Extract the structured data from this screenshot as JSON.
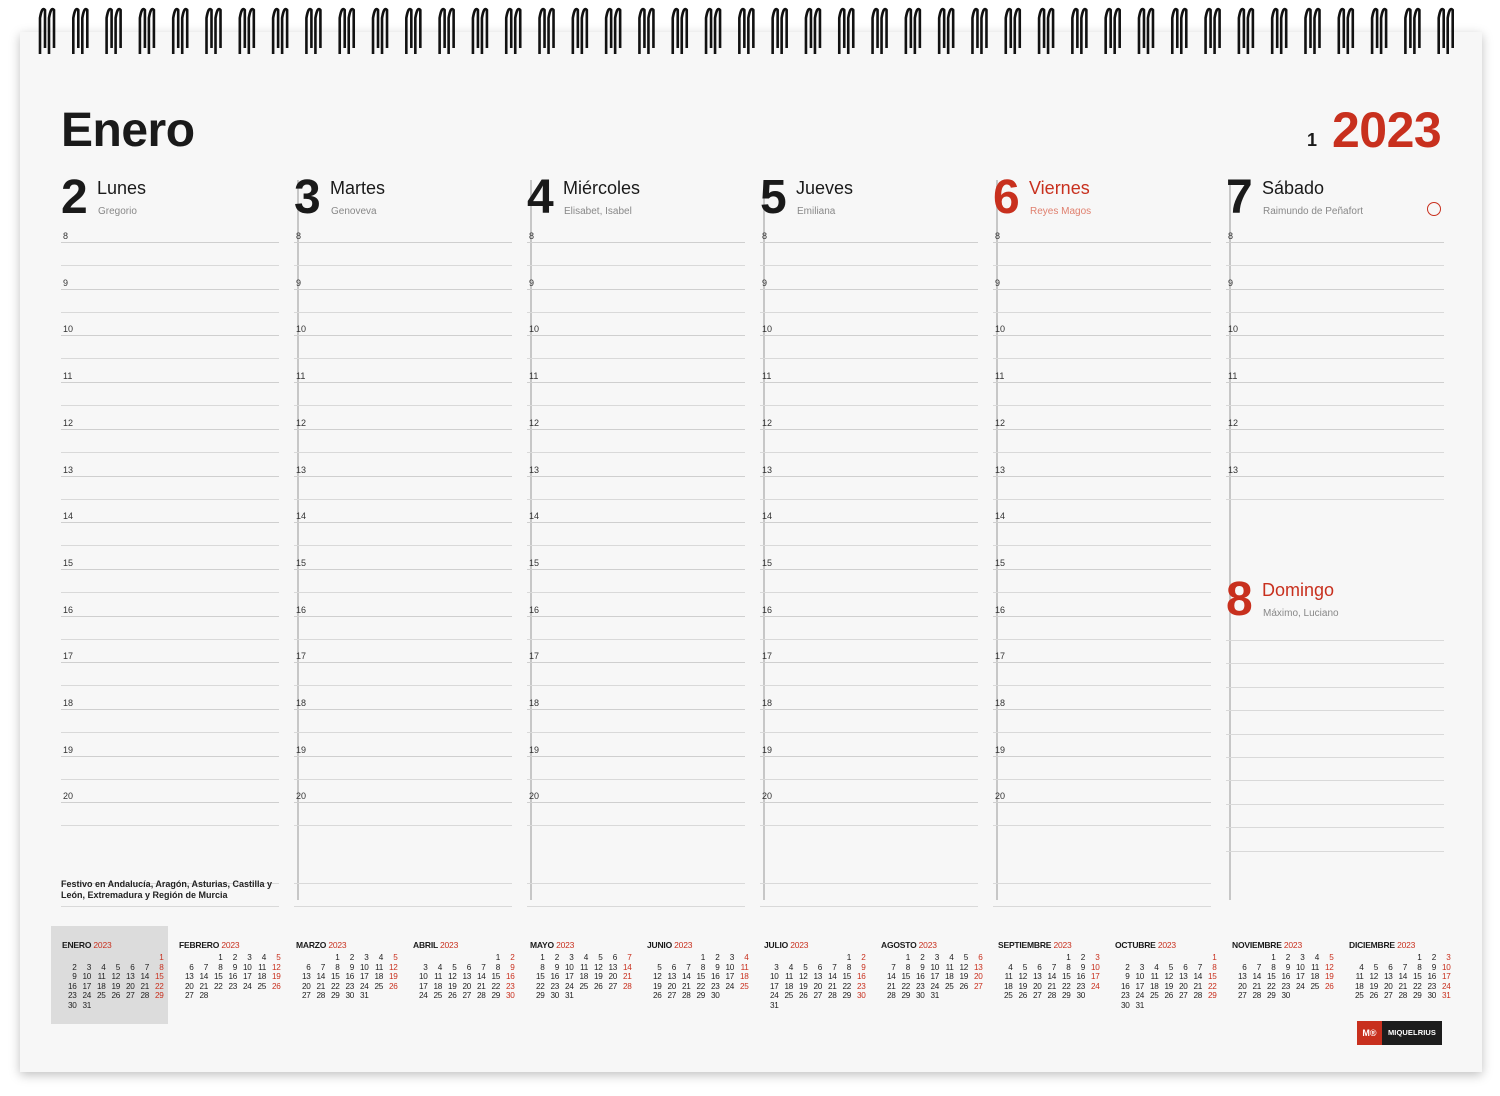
{
  "header": {
    "month": "Enero",
    "week": "1",
    "year": "2023"
  },
  "colors": {
    "accent": "#c8301e",
    "text": "#1a1a1a",
    "rule": "#d9d9d9"
  },
  "days": [
    {
      "num": "2",
      "name": "Lunes",
      "saint": "Gregorio",
      "red": false
    },
    {
      "num": "3",
      "name": "Martes",
      "saint": "Genoveva",
      "red": false
    },
    {
      "num": "4",
      "name": "Miércoles",
      "saint": "Elisabet, Isabel",
      "red": false
    },
    {
      "num": "5",
      "name": "Jueves",
      "saint": "Emiliana",
      "red": false
    },
    {
      "num": "6",
      "name": "Viernes",
      "saint": "Reyes Magos",
      "red": true
    },
    {
      "num": "7",
      "name": "Sábado",
      "saint": "Raimundo de Peñafort",
      "red": false
    },
    {
      "num": "8",
      "name": "Domingo",
      "saint": "Máximo, Luciano",
      "red": true
    }
  ],
  "hours": [
    "8",
    "9",
    "10",
    "11",
    "12",
    "13",
    "14",
    "15",
    "16",
    "17",
    "18",
    "19",
    "20"
  ],
  "holiday_note": "Festivo en Andalucía, Aragón, Asturias, Castilla y León, Extremadura y Región de Murcia",
  "mini_calendars": [
    {
      "name": "ENERO",
      "year": "2023",
      "offset": 6,
      "days": 31
    },
    {
      "name": "FEBRERO",
      "year": "2023",
      "offset": 2,
      "days": 28
    },
    {
      "name": "MARZO",
      "year": "2023",
      "offset": 2,
      "days": 31
    },
    {
      "name": "ABRIL",
      "year": "2023",
      "offset": 5,
      "days": 30
    },
    {
      "name": "MAYO",
      "year": "2023",
      "offset": 0,
      "days": 31
    },
    {
      "name": "JUNIO",
      "year": "2023",
      "offset": 3,
      "days": 30
    },
    {
      "name": "JULIO",
      "year": "2023",
      "offset": 5,
      "days": 31
    },
    {
      "name": "AGOSTO",
      "year": "2023",
      "offset": 1,
      "days": 31
    },
    {
      "name": "SEPTIEMBRE",
      "year": "2023",
      "offset": 4,
      "days": 30
    },
    {
      "name": "OCTUBRE",
      "year": "2023",
      "offset": 6,
      "days": 31
    },
    {
      "name": "NOVIEMBRE",
      "year": "2023",
      "offset": 2,
      "days": 30
    },
    {
      "name": "DICIEMBRE",
      "year": "2023",
      "offset": 4,
      "days": 31
    }
  ],
  "brand": {
    "badge": "M®",
    "name": "MIQUELRIUS"
  }
}
